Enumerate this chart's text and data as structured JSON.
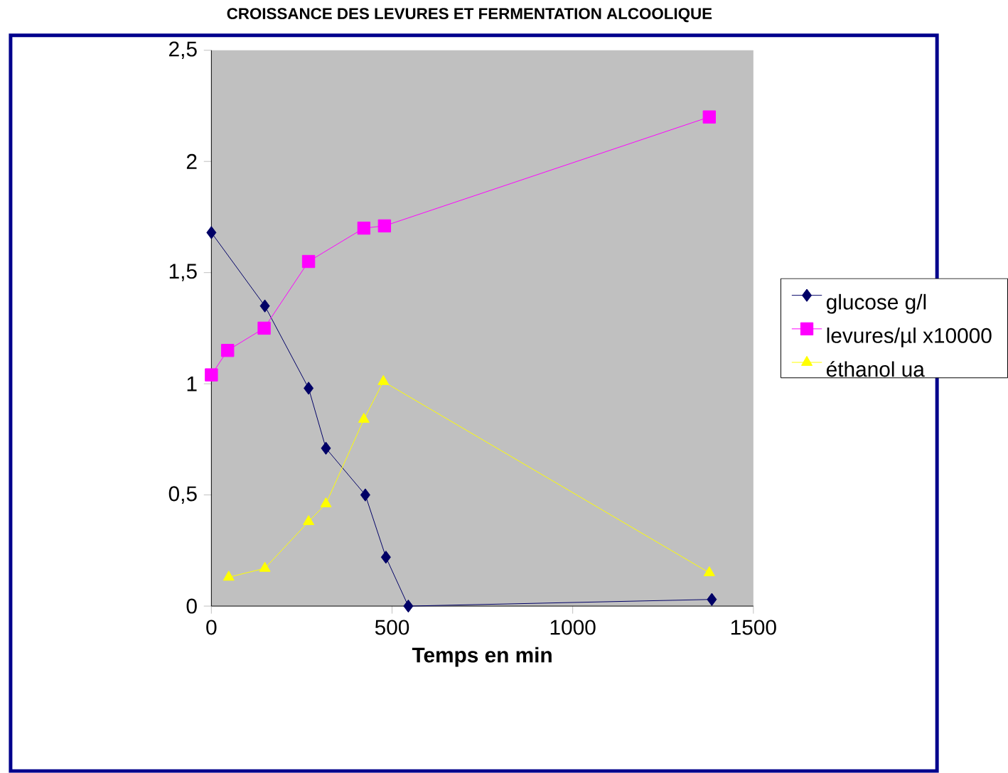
{
  "chart_data": {
    "type": "line",
    "title": "CROISSANCE DES LEVURES ET FERMENTATION ALCOOLIQUE",
    "xlabel": "Temps en min",
    "xlim": [
      0,
      1500
    ],
    "xticks": [
      0,
      500,
      1000,
      1500
    ],
    "ylim": [
      0,
      2.5
    ],
    "yticks": [
      0,
      {
        "value": 0.5,
        "label": "0,5"
      },
      1,
      {
        "value": 1.5,
        "label": "1,5"
      },
      2,
      {
        "value": 2.5,
        "label": "2,5"
      }
    ],
    "legend": "right",
    "grid": false,
    "series": [
      {
        "name": "glucose g/l",
        "color": "#000066",
        "marker": "diamond",
        "x": [
          0,
          148,
          269,
          317,
          426,
          483,
          545,
          1385
        ],
        "values": [
          1.68,
          1.35,
          0.98,
          0.71,
          0.5,
          0.22,
          0,
          0.03
        ]
      },
      {
        "name": "levures/µl x10000",
        "color": "#ff00ff",
        "marker": "square",
        "x": [
          0,
          45,
          146,
          269,
          422,
          479,
          1378
        ],
        "values": [
          1.04,
          1.15,
          1.25,
          1.55,
          1.7,
          1.71,
          2.2
        ]
      },
      {
        "name": "éthanol ua",
        "color": "#ffff00",
        "marker": "triangle",
        "x": [
          48,
          148,
          269,
          317,
          422,
          476,
          1378
        ],
        "values": [
          0.13,
          0.17,
          0.38,
          0.46,
          0.84,
          1.01,
          0.15
        ]
      }
    ]
  }
}
